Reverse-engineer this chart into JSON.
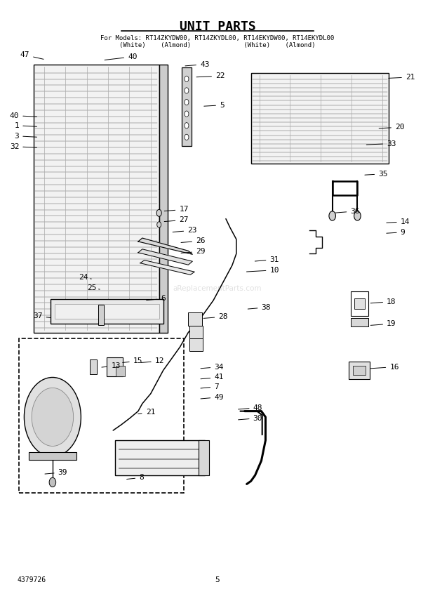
{
  "title": "UNIT PARTS",
  "subtitle_line1": "For Models: RT14ZKYDW00, RT14ZKYDL00, RT14EKYDW00, RT14EKYDL00",
  "subtitle_line2": "(White)    (Almond)              (White)    (Almond)",
  "part_number": "4379726",
  "page_number": "5",
  "bg_color": "#ffffff",
  "line_color": "#000000",
  "title_fontsize": 13,
  "subtitle_fontsize": 6.5,
  "label_fontsize": 8.0
}
